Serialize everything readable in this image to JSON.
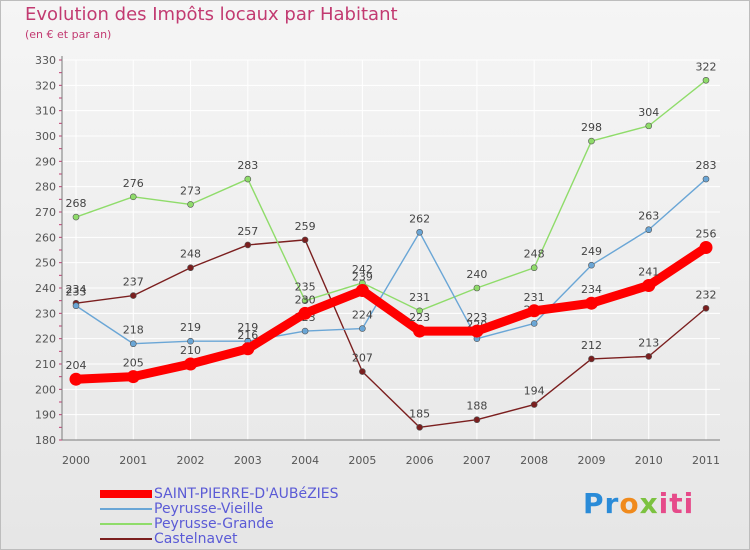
{
  "title": "Evolution des Impôts locaux par Habitant",
  "subtitle": "(en € et par an)",
  "brand": {
    "p1": "Pr",
    "p2": "o",
    "p3": "x",
    "p4": "iti"
  },
  "colors": {
    "title": "#c23a71",
    "legend_text": "#5b5bd6",
    "axis": "#7a7a7a",
    "grid": "#ffffff"
  },
  "chart_data": {
    "type": "line",
    "title": "Evolution des Impôts locaux par Habitant",
    "subtitle": "(en € et par an)",
    "xlabel": "",
    "ylabel": "",
    "x": [
      "2000",
      "2001",
      "2002",
      "2003",
      "2004",
      "2005",
      "2006",
      "2007",
      "2008",
      "2009",
      "2010",
      "2011"
    ],
    "ylim": [
      180,
      330
    ],
    "yticks": [
      180,
      190,
      200,
      210,
      220,
      230,
      240,
      250,
      260,
      270,
      280,
      290,
      300,
      310,
      320,
      330
    ],
    "grid": true,
    "legend_position": "bottom-left",
    "series": [
      {
        "name": "Castelnavet",
        "color": "#7b1f1f",
        "values": [
          234,
          237,
          248,
          257,
          259,
          207,
          185,
          188,
          194,
          212,
          213,
          232
        ],
        "labels": [
          "234",
          "237",
          "248",
          "257",
          "259",
          "207",
          "185",
          "188",
          "194",
          "212",
          "213",
          "232"
        ]
      },
      {
        "name": "Peyrusse-Grande",
        "color": "#8fdc6a",
        "values": [
          268,
          276,
          273,
          283,
          235,
          242,
          231,
          240,
          248,
          298,
          304,
          322
        ],
        "labels": [
          "268",
          "276",
          "273",
          "283",
          "235",
          "242",
          "231",
          "240",
          "248",
          "298",
          "304",
          "322"
        ]
      },
      {
        "name": "Peyrusse-Vieille",
        "color": "#6aa6d6",
        "values": [
          233,
          218,
          219,
          219,
          223,
          224,
          262,
          220,
          226,
          249,
          263,
          283
        ],
        "labels": [
          "233",
          "218",
          "219",
          "219",
          "223",
          "224",
          "262",
          "220",
          "226",
          "249",
          "263",
          "283"
        ]
      },
      {
        "name": "SAINT-PIERRE-D'AUBéZIES",
        "color": "#ff0000",
        "values": [
          204,
          205,
          210,
          216,
          230,
          239,
          223,
          223,
          231,
          234,
          241,
          256
        ],
        "labels": [
          "204",
          "205",
          "210",
          "216",
          "230",
          "239",
          "223",
          "223",
          "231",
          "234",
          "241",
          "256"
        ]
      }
    ]
  },
  "legend": [
    {
      "name": "SAINT-PIERRE-D'AUBéZIES",
      "color": "#ff0000"
    },
    {
      "name": "Peyrusse-Vieille",
      "color": "#6aa6d6"
    },
    {
      "name": "Peyrusse-Grande",
      "color": "#8fdc6a"
    },
    {
      "name": "Castelnavet",
      "color": "#7b1f1f"
    }
  ]
}
